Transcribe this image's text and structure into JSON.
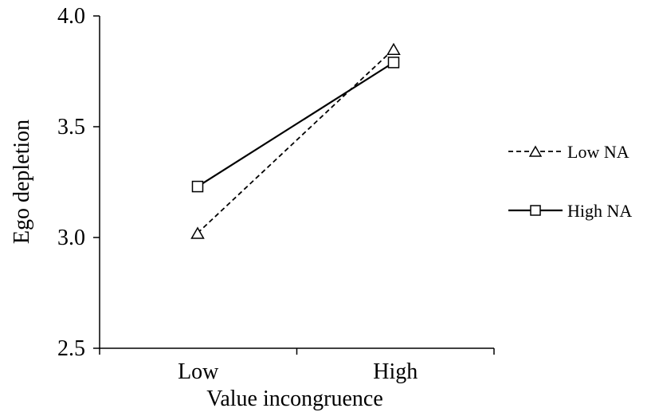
{
  "chart_data": {
    "type": "line",
    "title": "",
    "xlabel": "Value incongruence",
    "ylabel": "Ego depletion",
    "categories": [
      "Low",
      "High"
    ],
    "ylim": [
      2.5,
      4.0
    ],
    "y_ticks": [
      "2.5",
      "3.0",
      "3.5",
      "4.0"
    ],
    "grid": false,
    "legend_position": "right",
    "series": [
      {
        "name": "Low NA",
        "values": [
          3.02,
          3.85
        ],
        "line_style": "dashed",
        "marker": "triangle",
        "color": "#000000"
      },
      {
        "name": "High NA",
        "values": [
          3.23,
          3.79
        ],
        "line_style": "solid",
        "marker": "square",
        "color": "#000000"
      }
    ]
  }
}
